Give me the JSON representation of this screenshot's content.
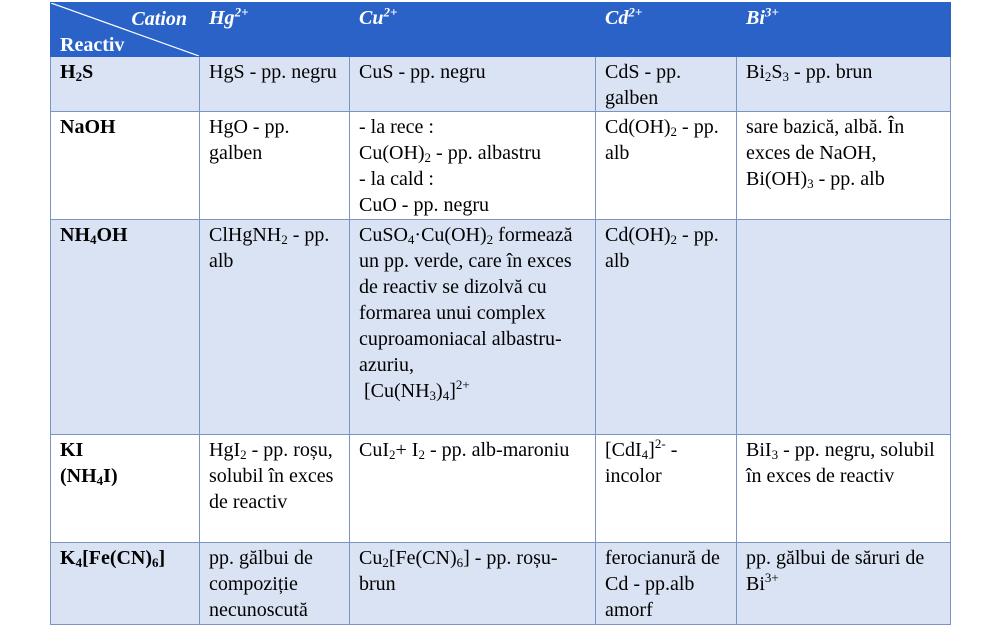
{
  "header": {
    "cation_label": "Cation",
    "reactiv_label": "Reactiv",
    "cations": [
      {
        "symbol": "Hg",
        "charge": "2+"
      },
      {
        "symbol": "Cu",
        "charge": "2+"
      },
      {
        "symbol": "Cd",
        "charge": "2+"
      },
      {
        "symbol": "Bi",
        "charge": "3+"
      }
    ]
  },
  "rows": {
    "h2s": {
      "reagent": "H2S",
      "hg": "HgS - pp. negru",
      "cu": "CuS - pp. negru",
      "cd": "CdS - pp. galben",
      "bi": "Bi2S3 - pp. brun"
    },
    "naoh": {
      "reagent": "NaOH",
      "hg": "HgO - pp. galben",
      "cu_line1": "- la rece :",
      "cu_line2": "Cu(OH)2 - pp. albastru",
      "cu_line3": "- la cald :",
      "cu_line4": "CuO - pp. negru",
      "cd": "Cd(OH)2 - pp. alb",
      "bi": "sare bazică, albă. În exces de NaOH, Bi(OH)3 - pp. alb"
    },
    "nh4oh": {
      "reagent": "NH4OH",
      "hg": "ClHgNH2 - pp. alb",
      "cu": "CuSO4·Cu(OH)2 formează un pp. verde, care în exces de reactiv se dizolvă cu formarea unui complex cuproamoniacal albastru-azuriu, [Cu(NH3)4]2+",
      "cd": "Cd(OH)2 - pp. alb",
      "bi": ""
    },
    "ki": {
      "reagent_line1": "KI",
      "reagent_line2": "(NH4I)",
      "hg": "HgI2 - pp. roșu, solubil în exces de reactiv",
      "cu": "CuI2+ I2 - pp. alb-maroniu",
      "cd": "[CdI4]2- - incolor",
      "bi": "BiI3 - pp. negru, solubil în exces de reactiv"
    },
    "k4fecn6": {
      "reagent": "K4[Fe(CN)6]",
      "hg": "pp. gălbui de compoziție necunoscută",
      "cu": "Cu2[Fe(CN)6] - pp. roșu-brun",
      "cd": "ferocianură de Cd - pp.alb amorf",
      "bi": "pp. gălbui de săruri de Bi3+"
    }
  }
}
